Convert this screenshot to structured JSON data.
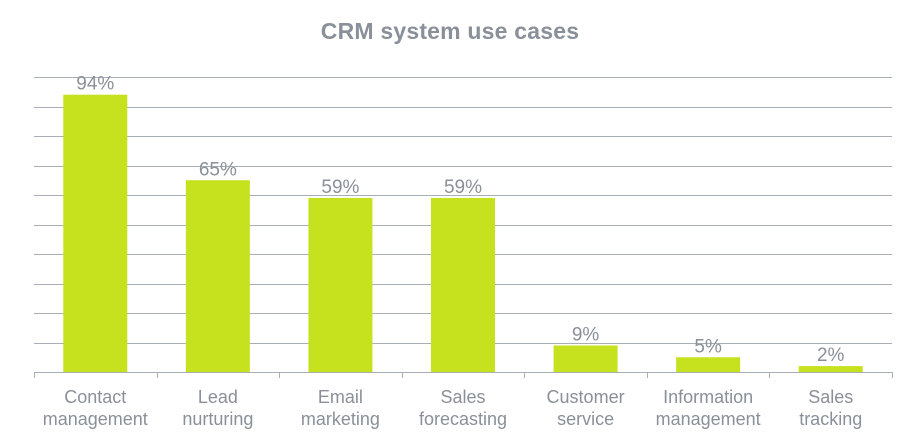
{
  "chart_data": {
    "type": "bar",
    "title": "CRM system use cases",
    "categories": [
      [
        "Contact",
        "management"
      ],
      [
        "Lead",
        "nurturing"
      ],
      [
        "Email",
        "marketing"
      ],
      [
        "Sales",
        "forecasting"
      ],
      [
        "Customer",
        "service"
      ],
      [
        "Information",
        "management"
      ],
      [
        "Sales",
        "tracking"
      ]
    ],
    "values": [
      94,
      65,
      59,
      59,
      9,
      5,
      2
    ],
    "data_labels": [
      "94%",
      "65%",
      "59%",
      "59%",
      "9%",
      "5%",
      "2%"
    ],
    "ylim": [
      0,
      100
    ],
    "y_grid_step": 10,
    "grid": true,
    "xlabel": "",
    "ylabel": "",
    "colors": {
      "bar": "#C6E11E",
      "grid": "#A9AEB6",
      "text": "#8A9099"
    }
  }
}
